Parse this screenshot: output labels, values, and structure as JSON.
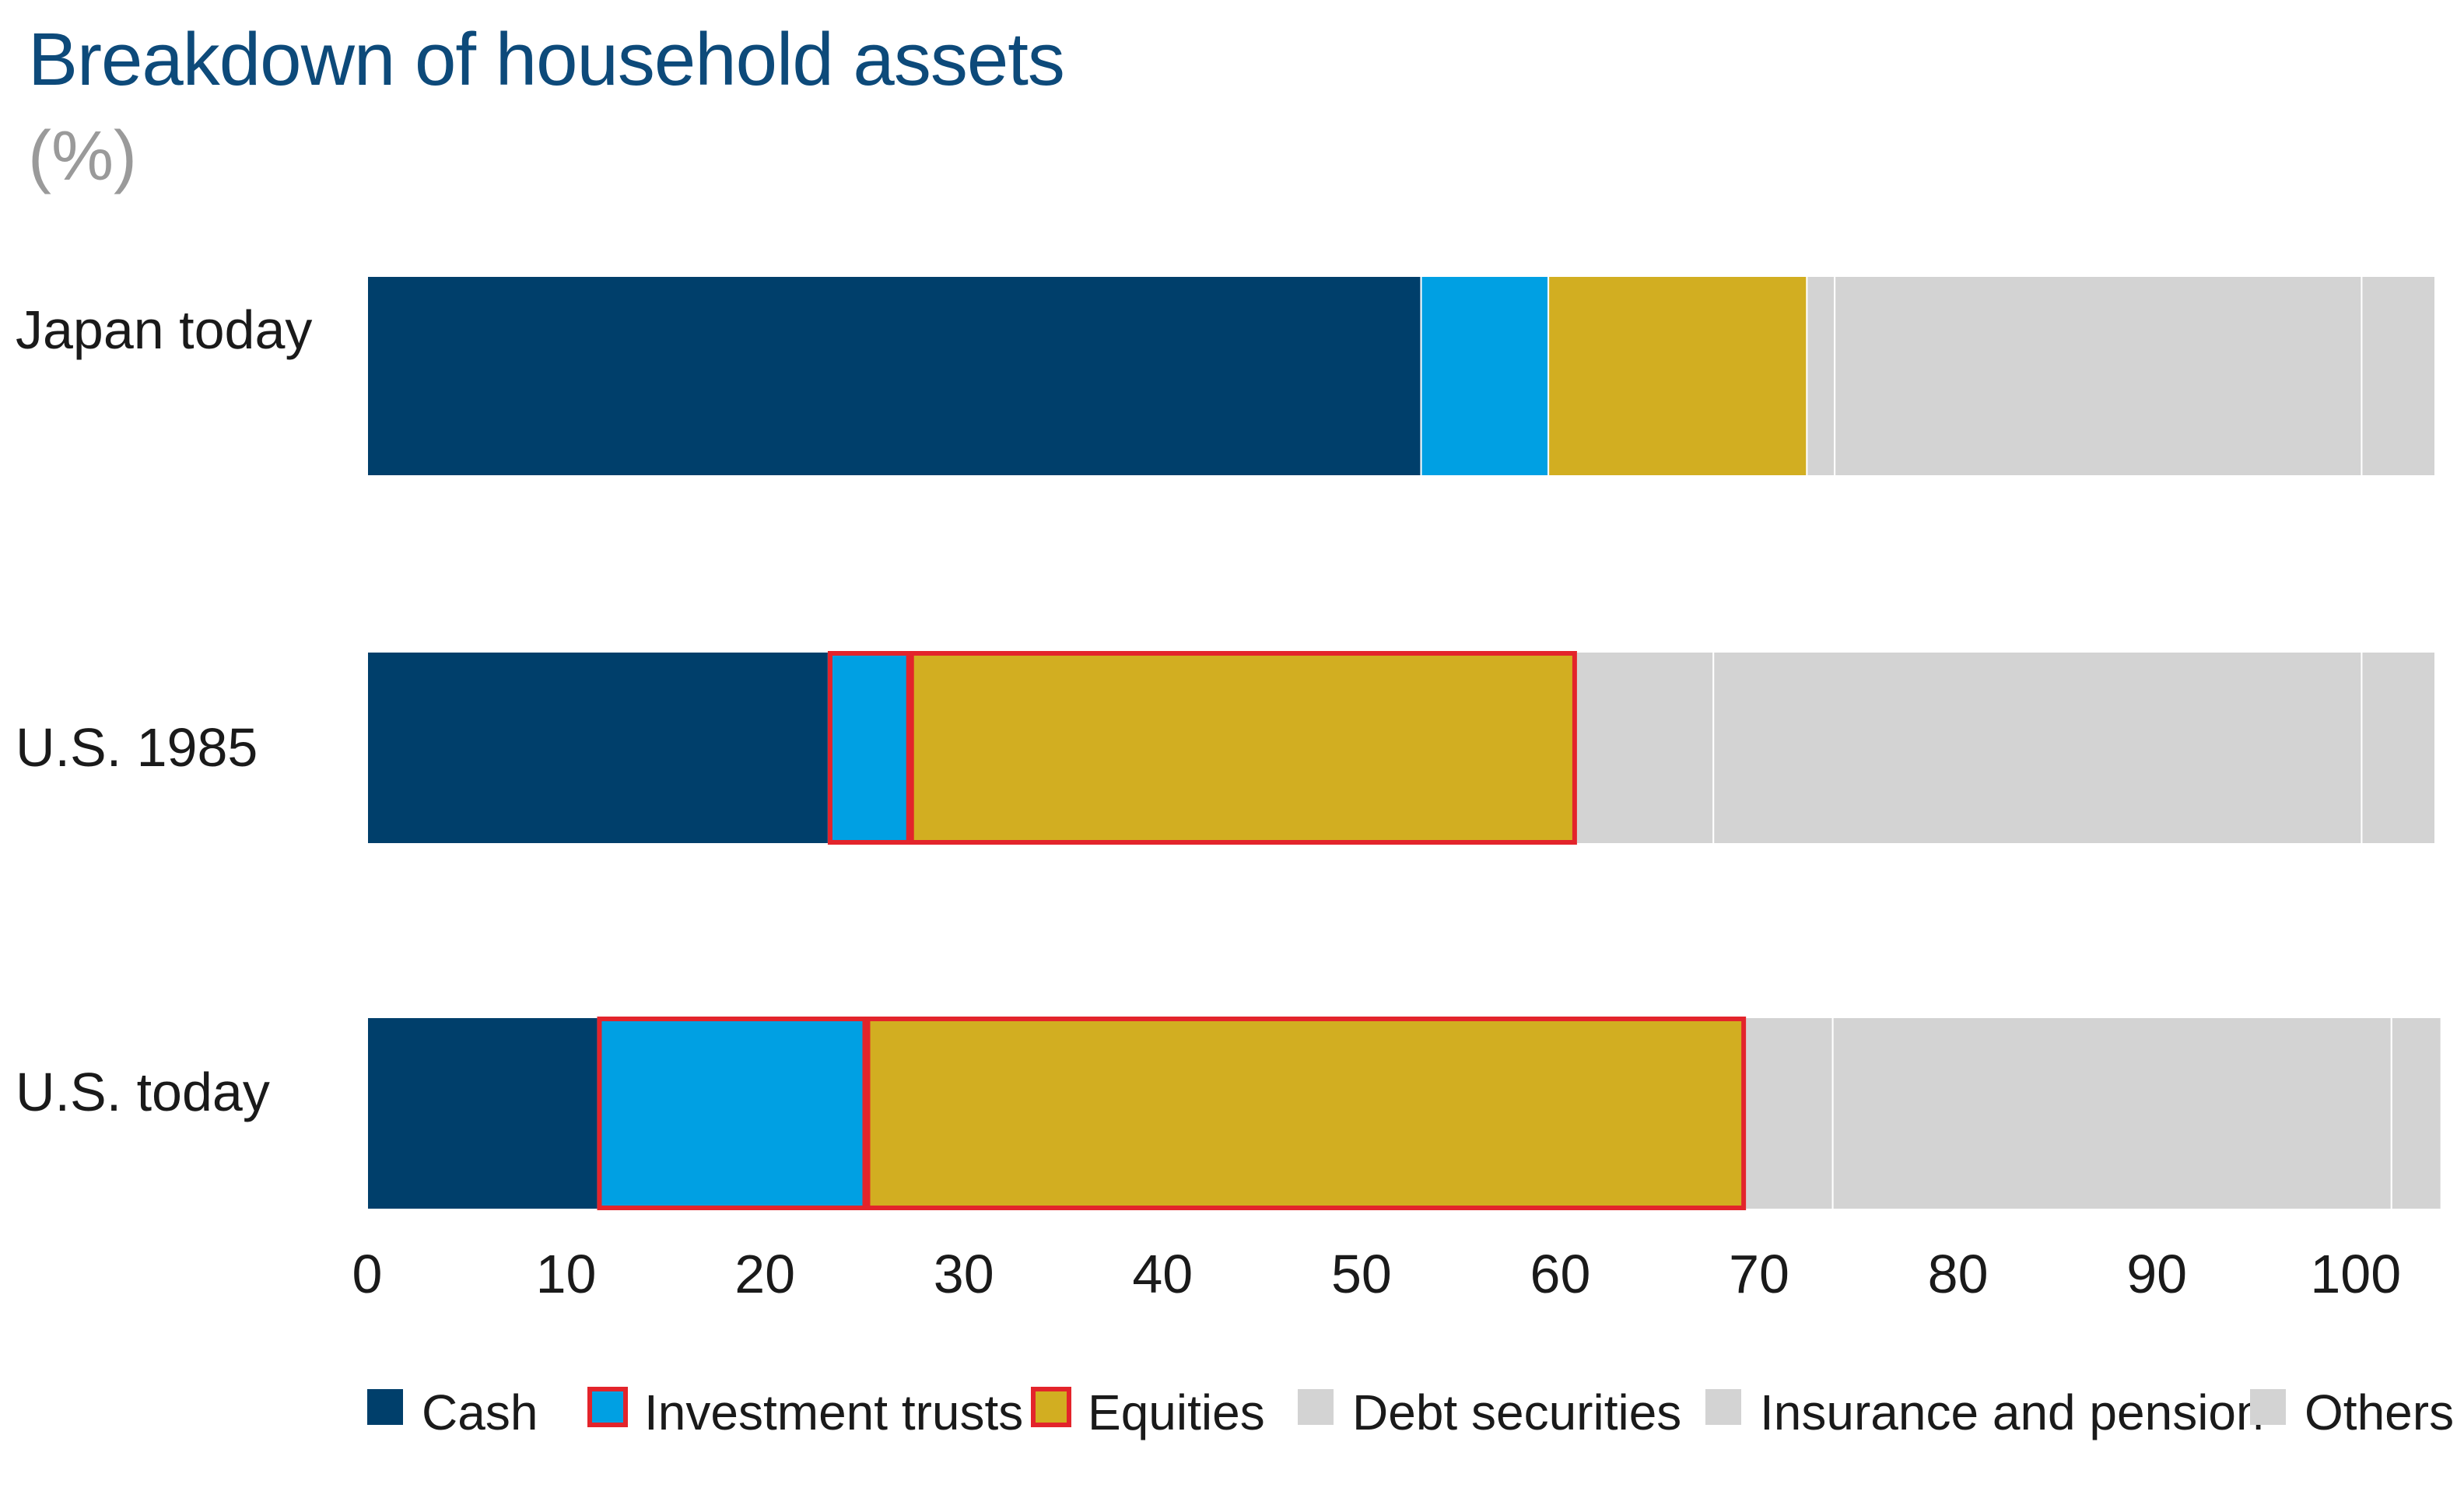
{
  "chart_data": {
    "type": "bar",
    "orientation": "horizontal",
    "stacked": true,
    "title": "Breakdown of household assets",
    "subtitle": "(%)",
    "categories": [
      "Japan today",
      "U.S. 1985",
      "U.S. today"
    ],
    "series": [
      {
        "name": "Cash",
        "color": "#003f6b",
        "highlighted": false,
        "values": [
          53.0,
          23.2,
          11.6
        ]
      },
      {
        "name": "Investment trusts",
        "color": "#00a0e3",
        "highlighted": true,
        "values": [
          6.4,
          4.1,
          13.5
        ]
      },
      {
        "name": "Equities",
        "color": "#d2ae21",
        "highlighted": true,
        "values": [
          13.0,
          33.5,
          44.2
        ]
      },
      {
        "name": "Debt securities",
        "color": "#d3d3d3",
        "highlighted": false,
        "values": [
          1.4,
          6.9,
          4.4
        ]
      },
      {
        "name": "Insurance and pension",
        "color": "#d3d3d3",
        "highlighted": false,
        "values": [
          26.5,
          32.6,
          28.1
        ]
      },
      {
        "name": "Others",
        "color": "#d3d3d3",
        "highlighted": false,
        "values": [
          3.7,
          3.7,
          2.5
        ]
      }
    ],
    "highlight_color": "#e3242b",
    "xlim": [
      0,
      104
    ],
    "xticks": [
      0,
      10,
      20,
      30,
      40,
      50,
      60,
      70,
      80,
      90,
      100
    ],
    "xtick_labels": [
      "0",
      "10",
      "20",
      "30",
      "40",
      "50",
      "60",
      "70",
      "80",
      "90",
      "100"
    ],
    "grid": false,
    "legend_position": "bottom"
  }
}
